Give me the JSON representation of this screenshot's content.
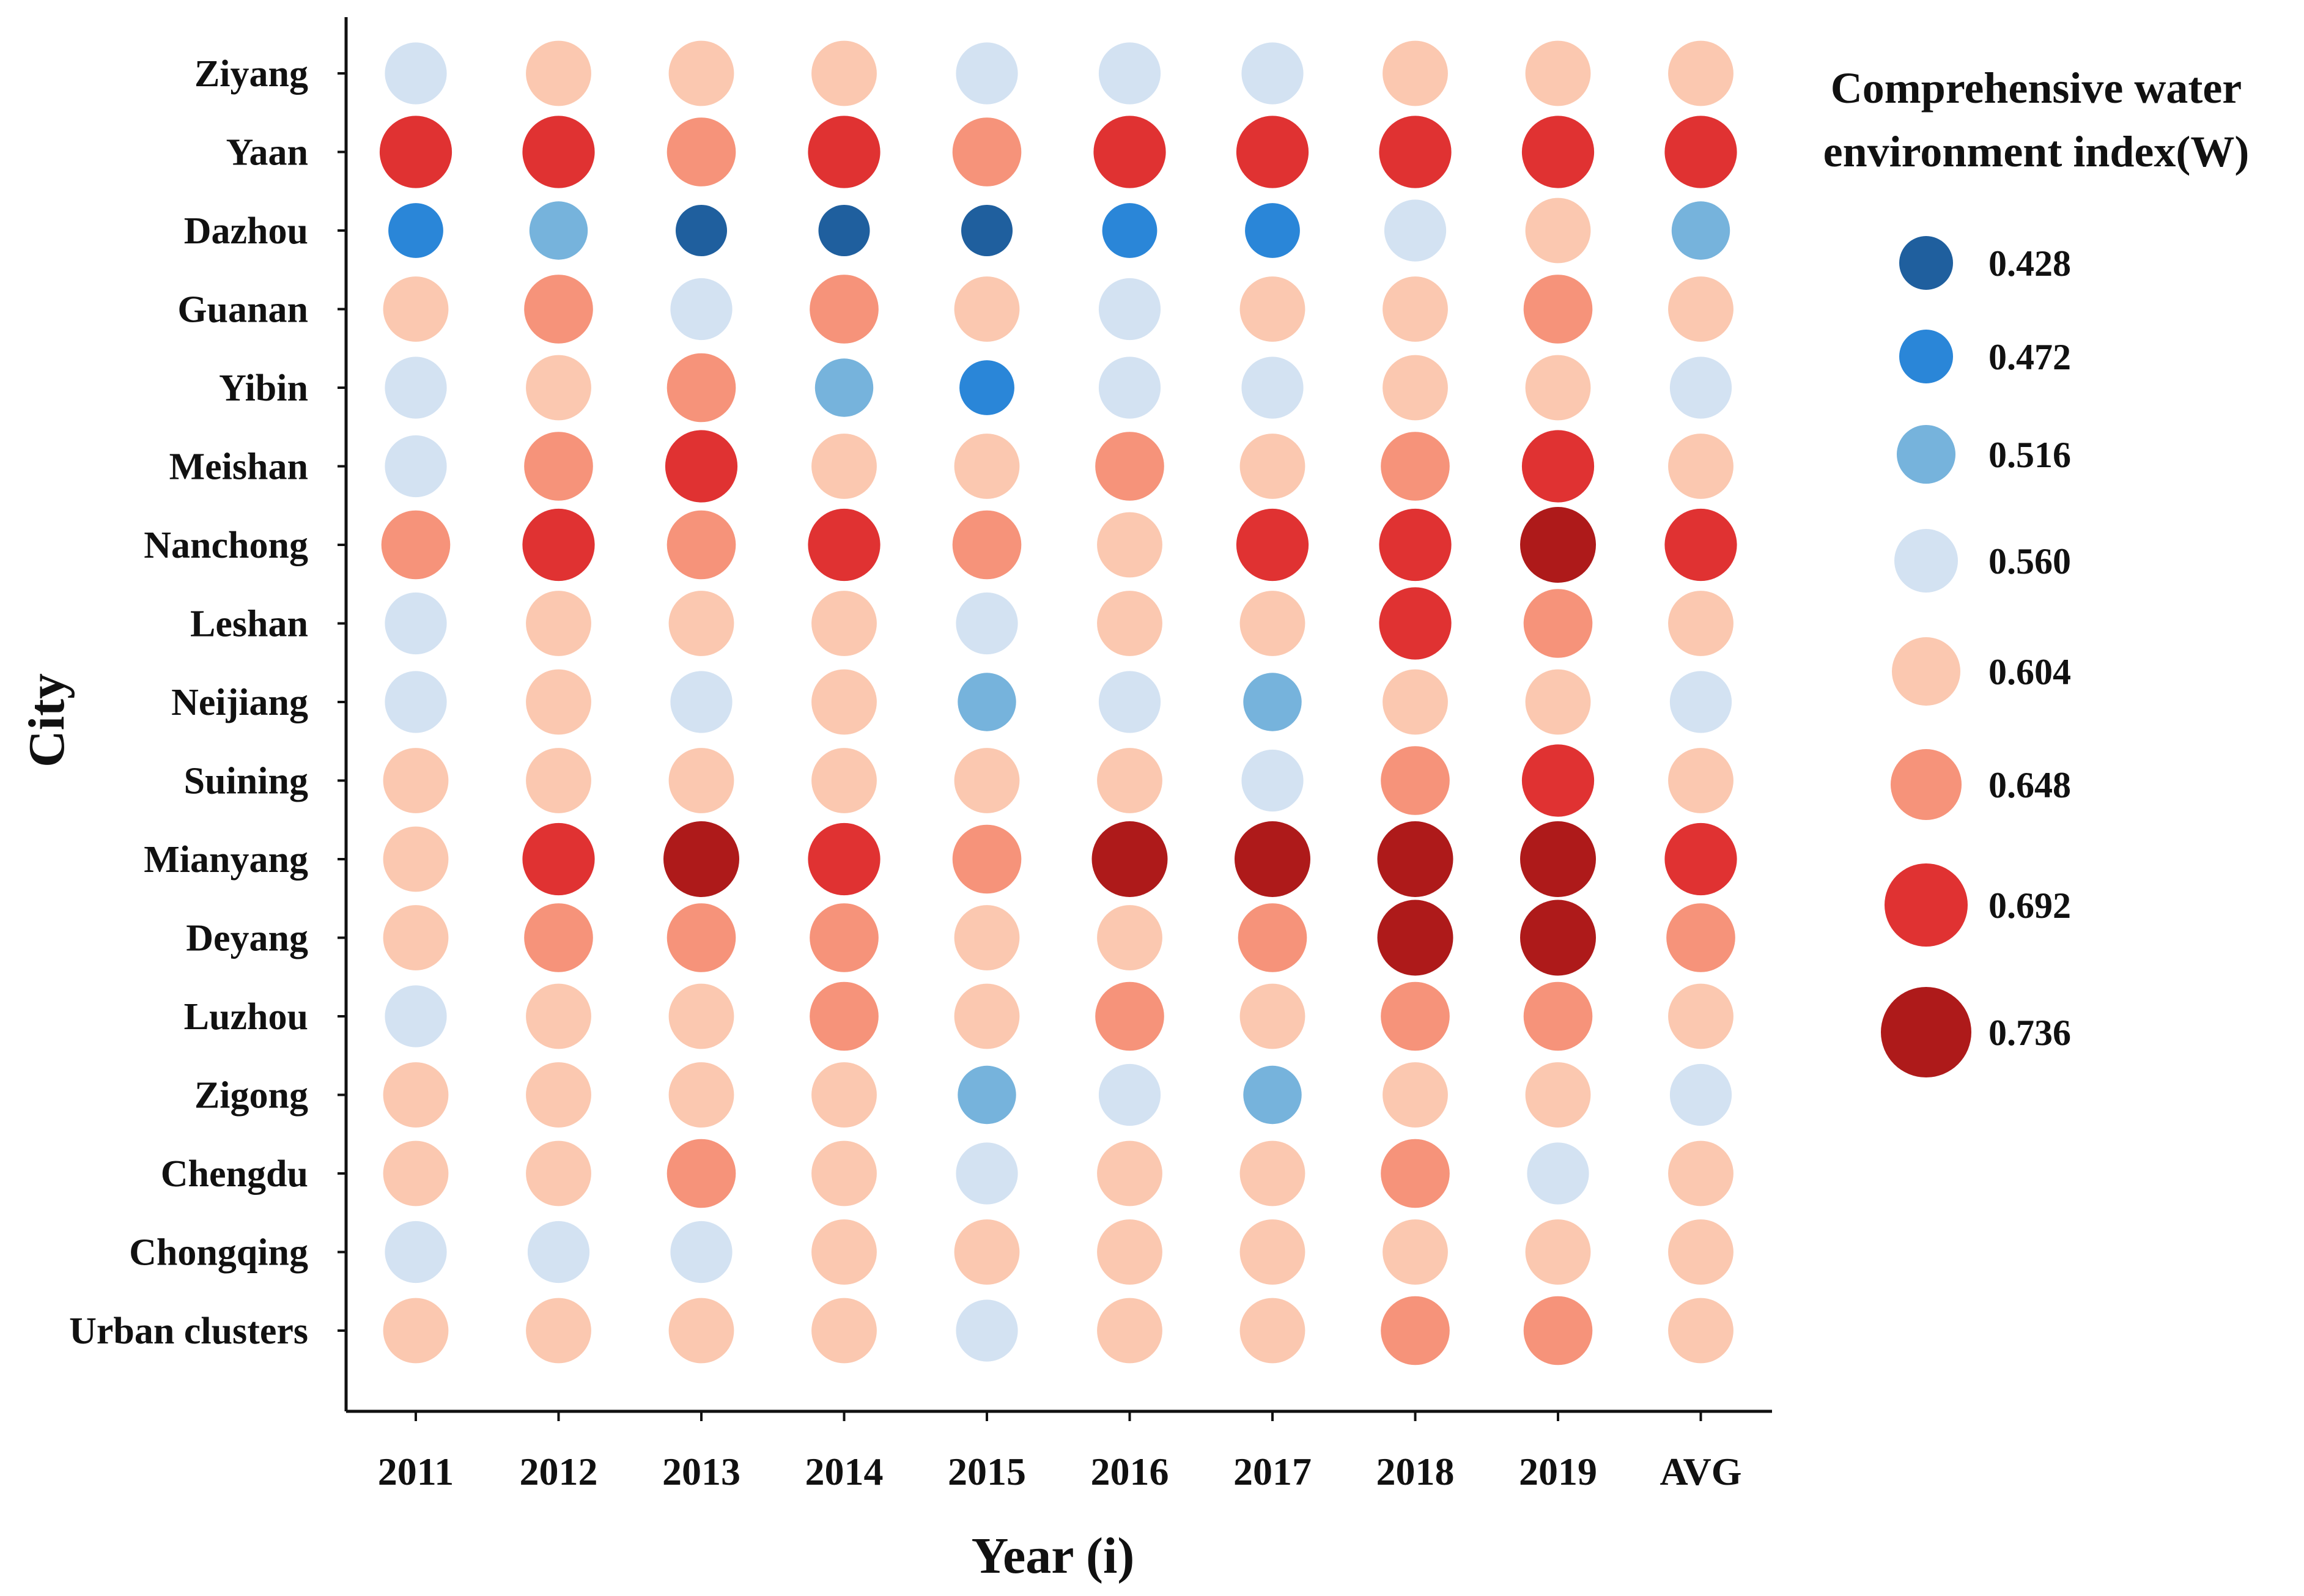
{
  "chart_data": {
    "type": "bubble-matrix",
    "title": "",
    "xlabel": "Year (i)",
    "ylabel": "City",
    "x_categories": [
      "2011",
      "2012",
      "2013",
      "2014",
      "2015",
      "2016",
      "2017",
      "2018",
      "2019",
      "AVG"
    ],
    "y_categories": [
      "Ziyang",
      "Yaan",
      "Dazhou",
      "Guanan",
      "Yibin",
      "Meishan",
      "Nanchong",
      "Leshan",
      "Neijiang",
      "Suining",
      "Mianyang",
      "Deyang",
      "Luzhou",
      "Zigong",
      "Chengdu",
      "Chongqing",
      "Urban clusters"
    ],
    "legend": {
      "title_line1": "Comprehensive water",
      "title_line2": "environment index(W)",
      "position": "right",
      "levels": [
        {
          "label": "0.428",
          "value": 0.428,
          "color": "#1f5f9e"
        },
        {
          "label": "0.472",
          "value": 0.472,
          "color": "#2a86d8"
        },
        {
          "label": "0.516",
          "value": 0.516,
          "color": "#76b3dc"
        },
        {
          "label": "0.560",
          "value": 0.56,
          "color": "#d3e2f2"
        },
        {
          "label": "0.604",
          "value": 0.604,
          "color": "#fbc8b0"
        },
        {
          "label": "0.648",
          "value": 0.648,
          "color": "#f6937a"
        },
        {
          "label": "0.692",
          "value": 0.692,
          "color": "#e03232"
        },
        {
          "label": "0.736",
          "value": 0.736,
          "color": "#ae1a1a"
        }
      ]
    },
    "values": [
      [
        0.56,
        0.604,
        0.604,
        0.604,
        0.56,
        0.56,
        0.56,
        0.604,
        0.604,
        0.604
      ],
      [
        0.692,
        0.692,
        0.648,
        0.692,
        0.648,
        0.692,
        0.692,
        0.692,
        0.692,
        0.692
      ],
      [
        0.472,
        0.516,
        0.428,
        0.428,
        0.428,
        0.472,
        0.472,
        0.56,
        0.604,
        0.516
      ],
      [
        0.604,
        0.648,
        0.56,
        0.648,
        0.604,
        0.56,
        0.604,
        0.604,
        0.648,
        0.604
      ],
      [
        0.56,
        0.604,
        0.648,
        0.516,
        0.472,
        0.56,
        0.56,
        0.604,
        0.604,
        0.56
      ],
      [
        0.56,
        0.648,
        0.692,
        0.604,
        0.604,
        0.648,
        0.604,
        0.648,
        0.692,
        0.604
      ],
      [
        0.648,
        0.692,
        0.648,
        0.692,
        0.648,
        0.604,
        0.692,
        0.692,
        0.736,
        0.692
      ],
      [
        0.56,
        0.604,
        0.604,
        0.604,
        0.56,
        0.604,
        0.604,
        0.692,
        0.648,
        0.604
      ],
      [
        0.56,
        0.604,
        0.56,
        0.604,
        0.516,
        0.56,
        0.516,
        0.604,
        0.604,
        0.56
      ],
      [
        0.604,
        0.604,
        0.604,
        0.604,
        0.604,
        0.604,
        0.56,
        0.648,
        0.692,
        0.604
      ],
      [
        0.604,
        0.692,
        0.736,
        0.692,
        0.648,
        0.736,
        0.736,
        0.736,
        0.736,
        0.692
      ],
      [
        0.604,
        0.648,
        0.648,
        0.648,
        0.604,
        0.604,
        0.648,
        0.736,
        0.736,
        0.648
      ],
      [
        0.56,
        0.604,
        0.604,
        0.648,
        0.604,
        0.648,
        0.604,
        0.648,
        0.648,
        0.604
      ],
      [
        0.604,
        0.604,
        0.604,
        0.604,
        0.516,
        0.56,
        0.516,
        0.604,
        0.604,
        0.56
      ],
      [
        0.604,
        0.604,
        0.648,
        0.604,
        0.56,
        0.604,
        0.604,
        0.648,
        0.56,
        0.604
      ],
      [
        0.56,
        0.56,
        0.56,
        0.604,
        0.604,
        0.604,
        0.604,
        0.604,
        0.604,
        0.604
      ],
      [
        0.604,
        0.604,
        0.604,
        0.604,
        0.56,
        0.604,
        0.604,
        0.648,
        0.648,
        0.604
      ]
    ]
  }
}
